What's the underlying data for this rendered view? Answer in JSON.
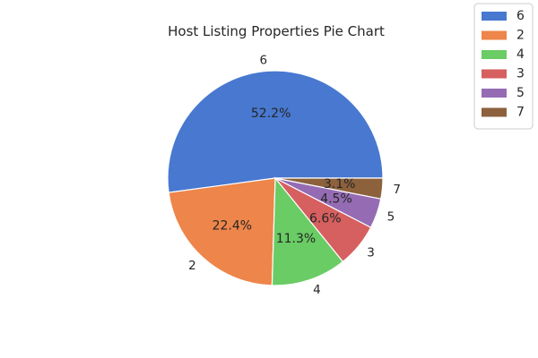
{
  "chart_data": {
    "type": "pie",
    "title": "Host Listing Properties Pie Chart",
    "categories": [
      "6",
      "2",
      "4",
      "3",
      "5",
      "7"
    ],
    "values": [
      52.2,
      22.4,
      11.3,
      6.6,
      4.5,
      3.1
    ],
    "percent_labels": [
      "52.2%",
      "22.4%",
      "11.3%",
      "6.6%",
      "4.5%",
      "3.1%"
    ],
    "colors": [
      "#4878d0",
      "#ee854a",
      "#6acc64",
      "#d65f5f",
      "#956cb4",
      "#8c613c"
    ],
    "legend_placement": "top-right",
    "legend": [
      "6",
      "2",
      "4",
      "3",
      "5",
      "7"
    ]
  }
}
